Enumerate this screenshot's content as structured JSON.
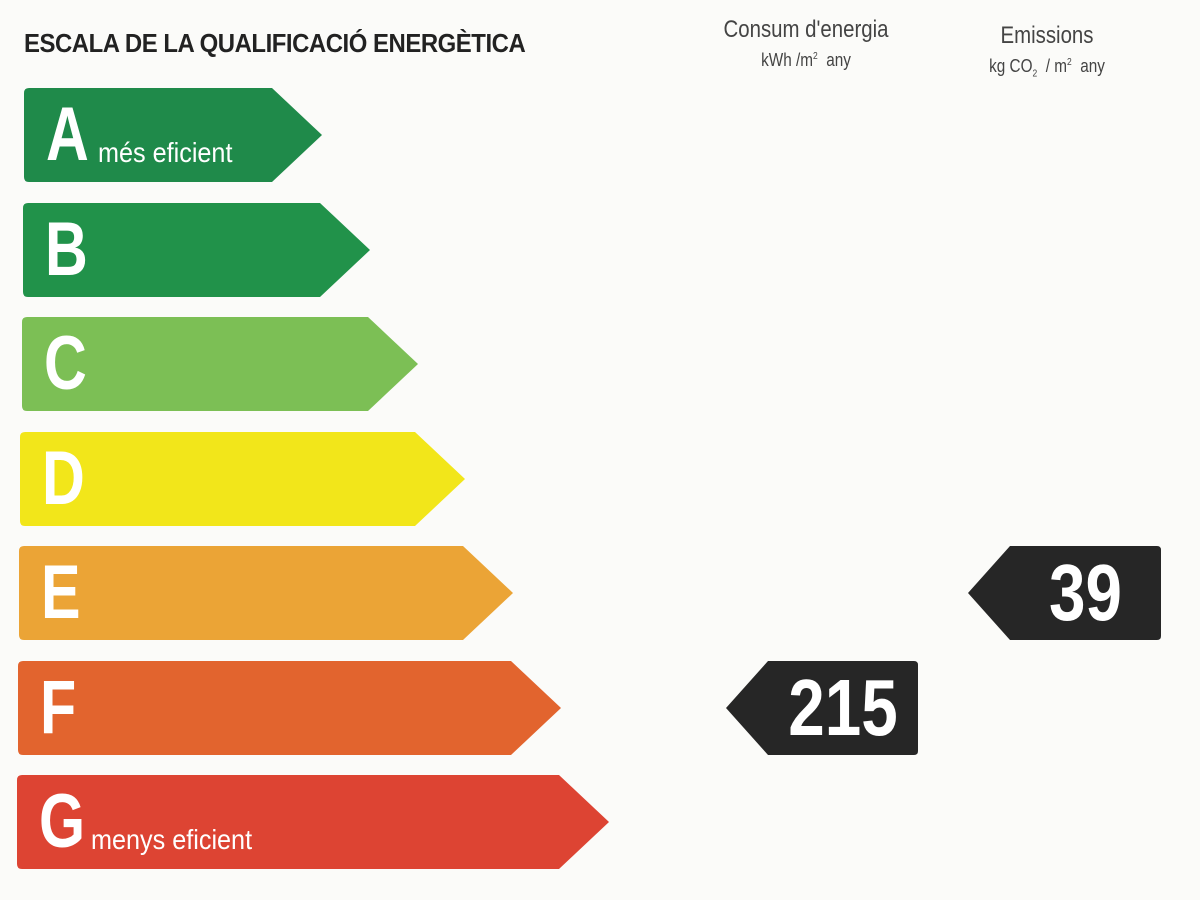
{
  "title": "ESCALA DE LA QUALIFICACIÓ ENERGÈTICA",
  "columns": {
    "consum": {
      "heading": "Consum d'energia",
      "unit_prefix": "kWh /m",
      "unit_exp": "2",
      "unit_suffix": "any"
    },
    "emissions": {
      "heading": "Emissions",
      "unit_prefix": "kg CO",
      "unit_sub": "2",
      "unit_mid": "/ m",
      "unit_exp": "2",
      "unit_suffix": "any"
    }
  },
  "scale": [
    {
      "letter": "A",
      "description": "més eficient",
      "color": "#1f8a4a"
    },
    {
      "letter": "B",
      "description": "",
      "color": "#21924a"
    },
    {
      "letter": "C",
      "description": "",
      "color": "#7cbf55"
    },
    {
      "letter": "D",
      "description": "",
      "color": "#f2e61a"
    },
    {
      "letter": "E",
      "description": "",
      "color": "#eba436"
    },
    {
      "letter": "F",
      "description": "",
      "color": "#e2642e"
    },
    {
      "letter": "G",
      "description": "menys eficient",
      "color": "#dd4433"
    }
  ],
  "ratings": {
    "consum": {
      "value": "215",
      "class": "F"
    },
    "emissions": {
      "value": "39",
      "class": "E"
    }
  },
  "badge_color": "#262626"
}
